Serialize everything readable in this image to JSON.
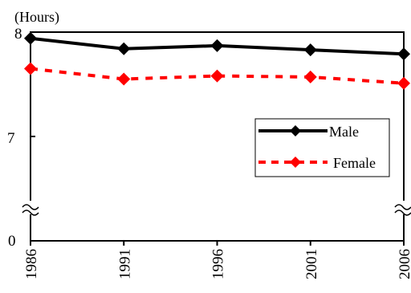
{
  "chart_data": {
    "type": "line",
    "ylabel": "(Hours)",
    "x": [
      "1986",
      "1991",
      "1996",
      "2001",
      "2006"
    ],
    "y_ticks": [
      "8",
      "7",
      "0"
    ],
    "y_break": true,
    "ylim": [
      7,
      8
    ],
    "legend_position": "right",
    "series": [
      {
        "name": "Male",
        "values": [
          7.94,
          7.84,
          7.87,
          7.83,
          7.79
        ],
        "color": "#000000",
        "line_style": "solid",
        "marker": "diamond"
      },
      {
        "name": "Female",
        "values": [
          7.65,
          7.55,
          7.58,
          7.57,
          7.51
        ],
        "color": "#ff0000",
        "line_style": "dashed",
        "marker": "diamond"
      }
    ]
  }
}
